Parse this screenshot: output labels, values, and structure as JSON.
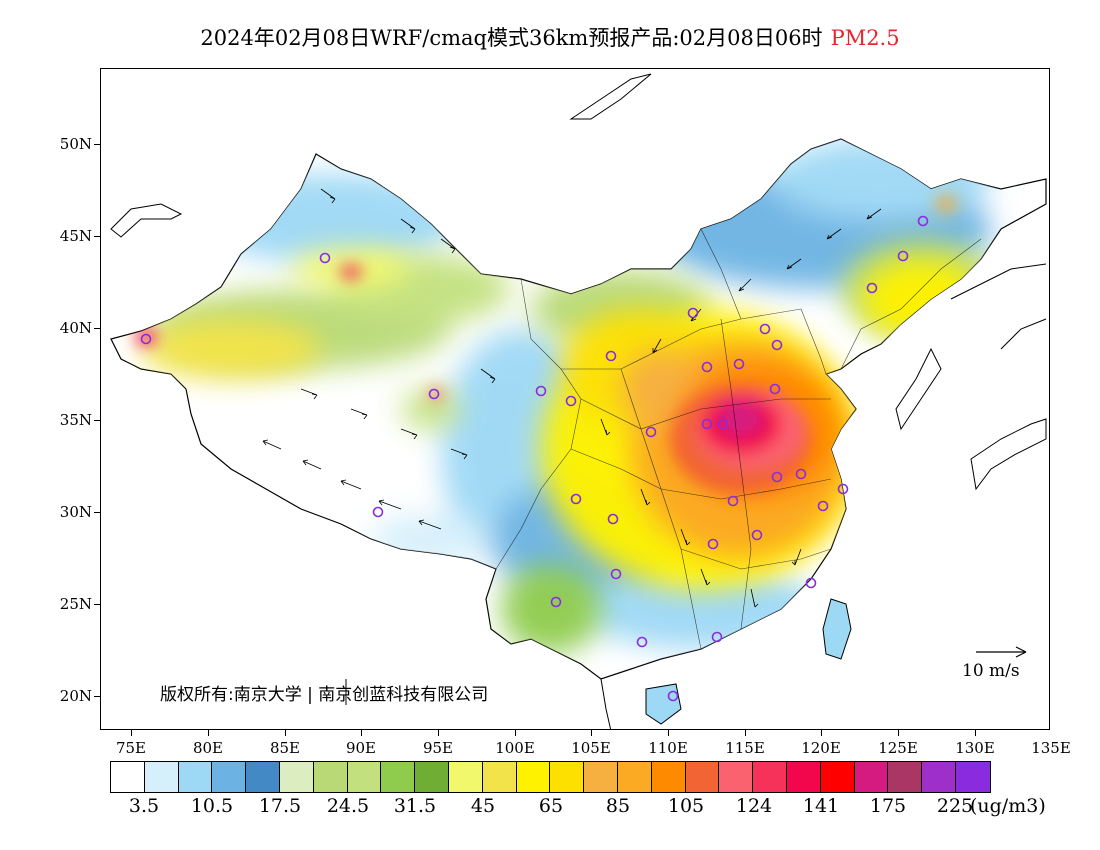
{
  "title": {
    "main": "2024年02月08日WRF/cmaq模式36km预报产品:02月08日06时",
    "pollutant": "PM2.5"
  },
  "axes": {
    "lat_labels": [
      "50N",
      "45N",
      "40N",
      "35N",
      "30N",
      "25N",
      "20N"
    ],
    "lon_labels": [
      "75E",
      "80E",
      "85E",
      "90E",
      "95E",
      "100E",
      "105E",
      "110E",
      "115E",
      "120E",
      "125E",
      "130E",
      "135E"
    ]
  },
  "copyright": "版权所有:南京大学 | 南京创蓝科技有限公司",
  "wind_scale": {
    "label": "10 m/s",
    "reference_speed": 10
  },
  "colorbar": {
    "colors": [
      "#ffffff",
      "#d5effb",
      "#9dd8f5",
      "#6cb3e3",
      "#4289c5",
      "#dceebf",
      "#b8d975",
      "#c2e17e",
      "#8fcc4e",
      "#70ad34",
      "#f2f86c",
      "#f3e34a",
      "#fef200",
      "#fde000",
      "#f6b040",
      "#fbaa24",
      "#fe8a00",
      "#f26434",
      "#fb6270",
      "#f7325a",
      "#f2074c",
      "#ff0000",
      "#d51a80",
      "#a93664",
      "#9f2fc9",
      "#8a2bde"
    ],
    "tick_labels": [
      "3.5",
      "10.5",
      "17.5",
      "24.5",
      "31.5",
      "45",
      "65",
      "85",
      "105",
      "124",
      "141",
      "175",
      "225"
    ],
    "unit": "(ug/m3)"
  },
  "legend_colors": {
    "hotspot": "#d51a80",
    "high": "#f7325a",
    "mid": "#fe8a00",
    "moderate": "#fef200",
    "low_green": "#b8d975",
    "low_blue": "#6cb3e3",
    "clean": "#ffffff",
    "city_marker": "#8a2bde",
    "title_pollutant": "#e8242c"
  }
}
